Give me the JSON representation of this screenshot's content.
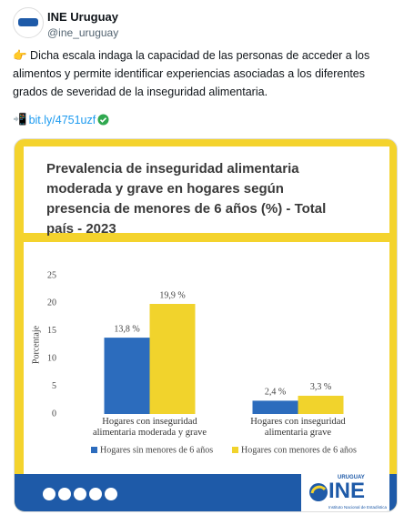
{
  "tweet": {
    "name": "INE Uruguay",
    "handle": "@ine_uruguay",
    "text": "👉 Dicha escala indaga la capacidad de las personas de acceder a los alimentos y permite identificar experiencias asociadas a los diferentes grados de severidad de la inseguridad alimentaria.",
    "link_emoji": "📲",
    "link": "bit.ly/4751uzf"
  },
  "chart_data": {
    "type": "bar",
    "title": "Prevalencia de inseguridad alimentaria moderada y grave en hogares según presencia de menores de 6 años (%) - Total país - 2023",
    "y_label": "Porcentaje",
    "categories": [
      "Hogares con inseguridad alimentaria moderada y grave",
      "Hogares con inseguridad alimentaria grave"
    ],
    "series": [
      {
        "name": "Hogares sin menores de 6 años",
        "color": "#2c6cbd",
        "values": [
          13.8,
          2.4
        ],
        "value_labels": [
          "13,8 %",
          "2,4 %"
        ]
      },
      {
        "name": "Hogares con menores de 6 años",
        "color": "#f1d32c",
        "values": [
          19.9,
          3.3
        ],
        "value_labels": [
          "19,9 %",
          "3,3 %"
        ]
      }
    ],
    "ylim": [
      0,
      25
    ],
    "yticks": [
      0,
      5,
      10,
      15,
      20,
      25
    ],
    "grid": false,
    "legend": "bottom"
  },
  "footer": {
    "logo_country": "URUGUAY",
    "logo_name": "INE",
    "logo_caption": "Instituto Nacional de Estadística"
  }
}
